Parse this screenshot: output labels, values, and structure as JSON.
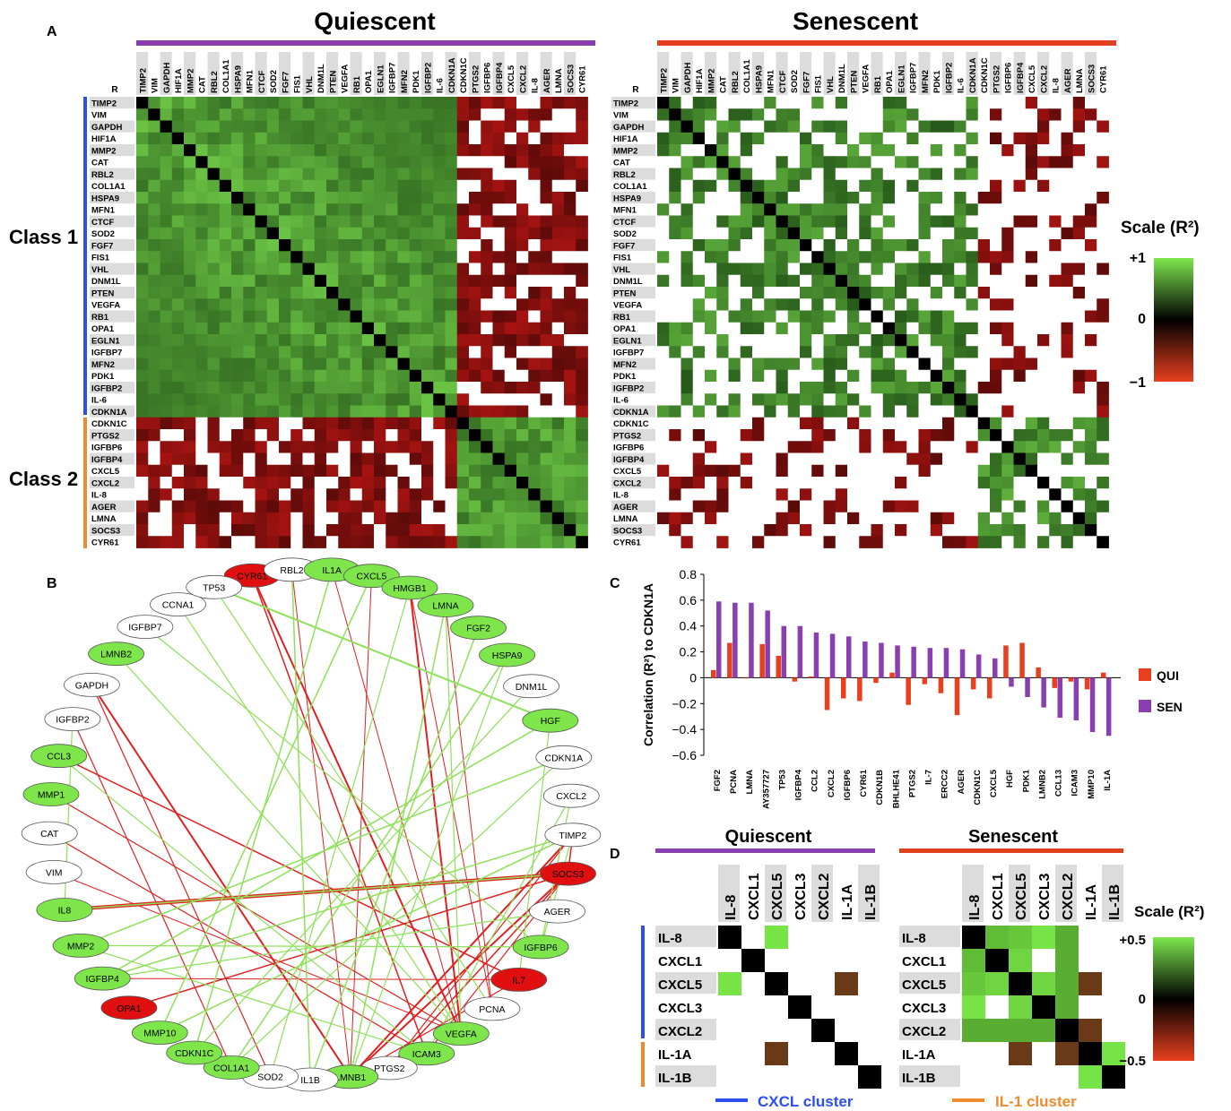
{
  "panel_labels": {
    "a": "A",
    "b": "B",
    "c": "C",
    "d": "D"
  },
  "panel_a": {
    "quiescent_title": "Quiescent",
    "senescent_title": "Senescent",
    "corner_label": "R",
    "class1_label": "Class 1",
    "class2_label": "Class 2",
    "genes": [
      "TIMP2",
      "VIM",
      "GAPDH",
      "HIF1A",
      "MMP2",
      "CAT",
      "RBL2",
      "COL1A1",
      "HSPA9",
      "MFN1",
      "CTCF",
      "SOD2",
      "FGF7",
      "FIS1",
      "VHL",
      "DNM1L",
      "PTEN",
      "VEGFA",
      "RB1",
      "OPA1",
      "EGLN1",
      "IGFBP7",
      "MFN2",
      "PDK1",
      "IGFBP2",
      "IL-6",
      "CDKN1A",
      "CDKN1C",
      "PTGS2",
      "IGFBP6",
      "IGFBP4",
      "CXCL5",
      "CXCL2",
      "IL-8",
      "AGER",
      "LMNA",
      "SOCS3",
      "CYR61"
    ],
    "scale_title": "Scale (R²)",
    "scale_ticks": [
      "+1",
      "0",
      "−1"
    ],
    "colors": {
      "positive": "#5fdc3c",
      "negative": "#e0301e",
      "zero": "#000000",
      "quiescent_bar": "#8a3fb0",
      "senescent_bar": "#e0401e",
      "class1_bar": "#2c4ff0",
      "class2_bar": "#ef8a2e"
    }
  },
  "panel_b": {
    "nodes": [
      {
        "name": "CYR61",
        "type": "red"
      },
      {
        "name": "RBL2",
        "type": "white"
      },
      {
        "name": "IL1A",
        "type": "green"
      },
      {
        "name": "CXCL5",
        "type": "green"
      },
      {
        "name": "HMGB1",
        "type": "green"
      },
      {
        "name": "LMNA",
        "type": "green"
      },
      {
        "name": "FGF2",
        "type": "green"
      },
      {
        "name": "HSPA9",
        "type": "green"
      },
      {
        "name": "DNM1L",
        "type": "white"
      },
      {
        "name": "HGF",
        "type": "green"
      },
      {
        "name": "CDKN1A",
        "type": "white"
      },
      {
        "name": "CXCL2",
        "type": "white"
      },
      {
        "name": "TIMP2",
        "type": "white"
      },
      {
        "name": "SOCS3",
        "type": "red"
      },
      {
        "name": "AGER",
        "type": "white"
      },
      {
        "name": "IGFBP6",
        "type": "green"
      },
      {
        "name": "IL7",
        "type": "red"
      },
      {
        "name": "PCNA",
        "type": "white"
      },
      {
        "name": "VEGFA",
        "type": "green"
      },
      {
        "name": "ICAM3",
        "type": "green"
      },
      {
        "name": "PTGS2",
        "type": "white"
      },
      {
        "name": "LMNB1",
        "type": "green"
      },
      {
        "name": "IL1B",
        "type": "white"
      },
      {
        "name": "SOD2",
        "type": "white"
      },
      {
        "name": "COL1A1",
        "type": "green"
      },
      {
        "name": "CDKN1C",
        "type": "green"
      },
      {
        "name": "MMP10",
        "type": "green"
      },
      {
        "name": "OPA1",
        "type": "red"
      },
      {
        "name": "IGFBP4",
        "type": "green"
      },
      {
        "name": "MMP2",
        "type": "green"
      },
      {
        "name": "IL8",
        "type": "green"
      },
      {
        "name": "VIM",
        "type": "white"
      },
      {
        "name": "CAT",
        "type": "white"
      },
      {
        "name": "MMP1",
        "type": "green"
      },
      {
        "name": "CCL3",
        "type": "green"
      },
      {
        "name": "IGFBP2",
        "type": "white"
      },
      {
        "name": "GAPDH",
        "type": "white"
      },
      {
        "name": "LMNB2",
        "type": "green"
      },
      {
        "name": "IGFBP7",
        "type": "white"
      },
      {
        "name": "CCNA1",
        "type": "white"
      },
      {
        "name": "TP53",
        "type": "white"
      }
    ],
    "colors": {
      "green_node": "#7ee64a",
      "red_node": "#e01010",
      "white_node": "#ffffff",
      "green_edge": "#8fe05a",
      "red_edge": "#e02020"
    }
  },
  "panel_c": {
    "legend": [
      "QUI",
      "SEN"
    ],
    "colors": {
      "QUI": "#e8401e",
      "SEN": "#8a3fb0"
    },
    "chart_data": {
      "type": "bar",
      "ylabel": "Correlation (R²) to CDKN1A",
      "ylim": [
        -0.6,
        0.8
      ],
      "yticks": [
        "0.8",
        "0.6",
        "0.4",
        "0.2",
        "0",
        "−0.2",
        "−0.4",
        "−0.6"
      ],
      "categories": [
        "FGF2",
        "PCNA",
        "LMNA",
        "AY357727",
        "TP53",
        "IGFBP4",
        "CCL2",
        "CXCL2",
        "IGFBP6",
        "CYR61",
        "CDKN1B",
        "BHLHE41",
        "PTGS2",
        "IL-7",
        "ERCC2",
        "AGER",
        "CDKN1C",
        "CXCL5",
        "HGF",
        "PDK1",
        "LMNB2",
        "CCL13",
        "ICAM3",
        "MMP10",
        "IL-1A"
      ],
      "series": [
        {
          "name": "QUI",
          "values": [
            0.06,
            0.27,
            0.0,
            0.26,
            0.17,
            -0.03,
            0.01,
            -0.25,
            -0.16,
            -0.18,
            -0.04,
            0.04,
            -0.21,
            -0.05,
            -0.12,
            -0.29,
            -0.09,
            -0.16,
            0.25,
            0.27,
            0.08,
            -0.08,
            -0.03,
            -0.09,
            0.04
          ]
        },
        {
          "name": "SEN",
          "values": [
            0.59,
            0.58,
            0.58,
            0.52,
            0.4,
            0.4,
            0.35,
            0.34,
            0.32,
            0.28,
            0.27,
            0.25,
            0.24,
            0.23,
            0.23,
            0.22,
            0.18,
            0.15,
            -0.07,
            -0.15,
            -0.23,
            -0.31,
            -0.33,
            -0.42,
            -0.45
          ]
        }
      ]
    }
  },
  "panel_d": {
    "quiescent_title": "Quiescent",
    "senescent_title": "Senescent",
    "column_genes": [
      "IL-8",
      "CXCL1",
      "CXCL5",
      "CXCL3",
      "CXCL2",
      "IL-1A",
      "IL-1B"
    ],
    "row_genes": [
      "IL-8",
      "CXCL1",
      "CXCL5",
      "CXCL3",
      "CXCL2",
      "IL-1A",
      "IL-1B"
    ],
    "scale_title": "Scale (R²)",
    "scale_ticks": [
      "+0.5",
      "0",
      "−0.5"
    ],
    "cxcl_cluster": "CXCL cluster",
    "il1_cluster": "IL-1 cluster",
    "quiescent_matrix": [
      [
        1,
        0,
        0.4,
        0,
        0,
        0,
        0
      ],
      [
        0,
        1,
        0,
        0,
        0,
        0,
        0
      ],
      [
        0.4,
        0,
        1,
        0,
        0,
        -0.3,
        0
      ],
      [
        0,
        0,
        0,
        1,
        0,
        0,
        0
      ],
      [
        0,
        0,
        0,
        0,
        1,
        0,
        0
      ],
      [
        0,
        0,
        -0.3,
        0,
        0,
        1,
        0
      ],
      [
        0,
        0,
        0,
        0,
        0,
        0,
        1
      ]
    ],
    "senescent_matrix": [
      [
        1,
        0.25,
        0.3,
        0.4,
        0.2,
        0,
        0
      ],
      [
        0.25,
        1,
        0.35,
        0,
        0.2,
        0,
        0
      ],
      [
        0.3,
        0.35,
        1,
        0.35,
        0.2,
        -0.3,
        0
      ],
      [
        0.4,
        0,
        0.35,
        1,
        0.2,
        0,
        0
      ],
      [
        0.2,
        0.2,
        0.2,
        0.2,
        1,
        -0.3,
        0
      ],
      [
        0,
        0,
        -0.3,
        0,
        -0.3,
        1,
        0.4
      ],
      [
        0,
        0,
        0,
        0,
        0,
        0.4,
        1
      ]
    ]
  }
}
